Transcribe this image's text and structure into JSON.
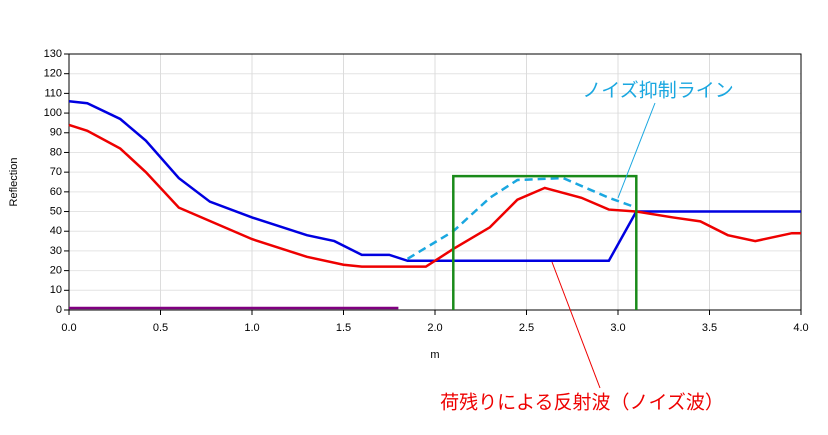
{
  "chart_data": {
    "type": "line",
    "y_label": "Reflection",
    "x_label": "m",
    "xlim": [
      0,
      4
    ],
    "ylim": [
      0,
      130
    ],
    "xticks": [
      {
        "value": 0,
        "label": "0.0"
      },
      0.5,
      {
        "value": 1,
        "label": "1.0"
      },
      1.5,
      {
        "value": 2,
        "label": "2.0"
      },
      2.5,
      {
        "value": 3,
        "label": "3.0"
      },
      3.5,
      {
        "value": 4,
        "label": "4.0"
      }
    ],
    "yticks": [
      0,
      10,
      20,
      30,
      40,
      50,
      60,
      70,
      80,
      90,
      100,
      110,
      120,
      130
    ],
    "grid": true,
    "series": [
      {
        "color": "#0000e0",
        "x": [
          0,
          0.1,
          0.28,
          0.42,
          0.6,
          0.77,
          1.0,
          1.3,
          1.45,
          1.6,
          1.75,
          1.85,
          2.0,
          2.95,
          3.1,
          4.0
        ],
        "values": [
          106,
          105,
          97,
          86,
          67,
          55,
          47,
          38,
          35,
          28,
          28,
          25,
          25,
          25,
          50,
          50
        ]
      },
      {
        "color": "#ee0000",
        "x": [
          0,
          0.1,
          0.28,
          0.42,
          0.6,
          0.8,
          1.0,
          1.3,
          1.5,
          1.6,
          1.95,
          2.1,
          2.3,
          2.45,
          2.6,
          2.8,
          2.95,
          3.1,
          3.3,
          3.45,
          3.6,
          3.75,
          3.95,
          4.0
        ],
        "values": [
          94,
          91,
          82,
          70,
          52,
          44,
          36,
          27,
          23,
          22,
          22,
          31,
          42,
          56,
          62,
          57,
          51,
          50,
          47,
          45,
          38,
          35,
          39,
          39
        ]
      },
      {
        "color": "#1aa7e0",
        "dashed": true,
        "x": [
          1.85,
          2.1,
          2.3,
          2.45,
          2.7,
          2.95,
          3.1
        ],
        "values": [
          26,
          40,
          57,
          66,
          67,
          57,
          52
        ]
      },
      {
        "color": "#1a8a1a",
        "x": [
          2.1,
          2.1,
          3.1,
          3.1
        ],
        "values": [
          0,
          68,
          68,
          0
        ]
      },
      {
        "color": "#800080",
        "x": [
          0,
          1.8
        ],
        "values": [
          1,
          1
        ]
      }
    ],
    "annotations": [
      {
        "text": "ノイズ抑制ライン",
        "color": "#1aa7e0"
      },
      {
        "text": "荷残りによる反射波（ノイズ波）",
        "color": "#ee0000"
      }
    ]
  }
}
